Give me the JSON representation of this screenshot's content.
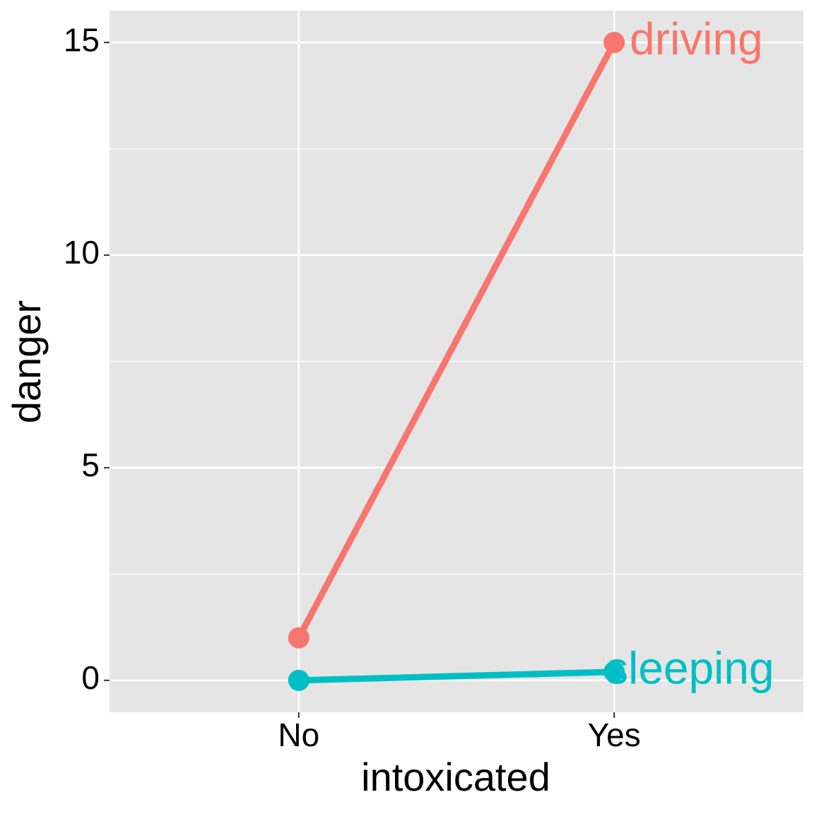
{
  "chart_data": {
    "type": "line",
    "x_label": "intoxicated",
    "y_label": "danger",
    "categories": [
      "No",
      "Yes"
    ],
    "series": [
      {
        "name": "driving",
        "color": "#F8766D",
        "values": [
          1,
          15
        ]
      },
      {
        "name": "sleeping",
        "color": "#00BFC4",
        "values": [
          0,
          0.2
        ]
      }
    ],
    "ylim": [
      -0.75,
      15.75
    ],
    "yticks": [
      0,
      5,
      10,
      15
    ],
    "grid": true,
    "minor_grid": true
  }
}
